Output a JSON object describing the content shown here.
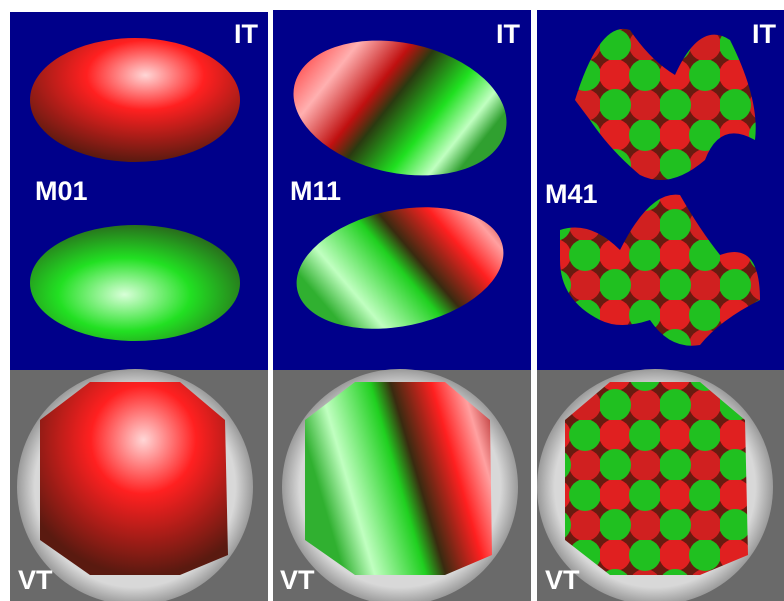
{
  "panels": [
    {
      "top_label": "IT",
      "mode": "M01",
      "bottom_label": "VT"
    },
    {
      "top_label": "IT",
      "mode": "M11",
      "bottom_label": "VT"
    },
    {
      "top_label": "IT",
      "mode": "M41",
      "bottom_label": "VT"
    }
  ]
}
